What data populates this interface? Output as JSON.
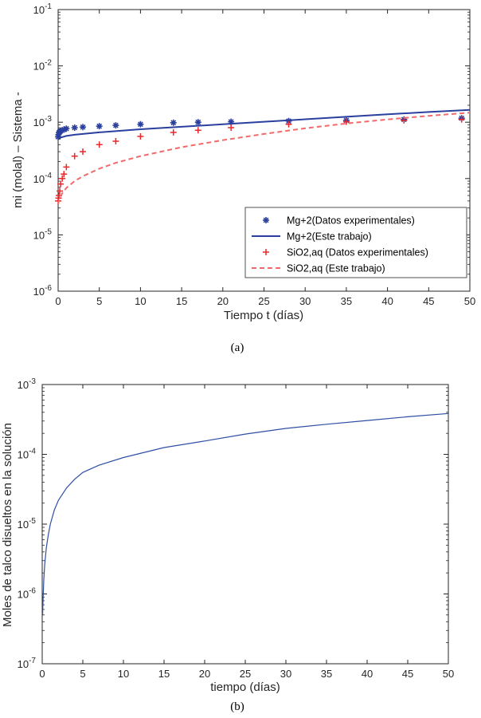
{
  "chart_data": [
    {
      "type": "line",
      "panel": "(a)",
      "xlabel": "Tiempo t (días)",
      "ylabel": "mi (molal) – Sistema -",
      "xlim": [
        0,
        50
      ],
      "ylim": [
        1e-06,
        0.1
      ],
      "yscale": "log",
      "xticks": [
        "0",
        "5",
        "10",
        "15",
        "20",
        "25",
        "30",
        "35",
        "40",
        "45",
        "50"
      ],
      "yticks": [
        {
          "base": "10",
          "exp": "-6"
        },
        {
          "base": "10",
          "exp": "-5"
        },
        {
          "base": "10",
          "exp": "-4"
        },
        {
          "base": "10",
          "exp": "-3"
        },
        {
          "base": "10",
          "exp": "-2"
        },
        {
          "base": "10",
          "exp": "-1"
        }
      ],
      "grid": false,
      "legend_position": "bottom-right",
      "series": [
        {
          "name": "Mg+2(Datos experimentales)",
          "style": "markers",
          "marker": "*",
          "color": "#2b3f9e",
          "x": [
            0,
            0.05,
            0.1,
            0.2,
            0.3,
            0.5,
            0.7,
            1,
            2,
            3,
            5,
            7,
            10,
            14,
            17,
            21,
            28,
            35,
            42,
            49
          ],
          "y": [
            0.00055,
            0.0006,
            0.00065,
            0.00068,
            0.0007,
            0.00072,
            0.00074,
            0.00077,
            0.0008,
            0.00082,
            0.00085,
            0.00088,
            0.00092,
            0.00098,
            0.001,
            0.00102,
            0.00105,
            0.00108,
            0.00112,
            0.00118
          ]
        },
        {
          "name": "Mg+2(Este trabajo)",
          "style": "solid",
          "color": "#2b3f9e",
          "x": [
            0,
            1,
            2,
            5,
            10,
            15,
            20,
            25,
            30,
            35,
            40,
            45,
            50
          ],
          "y": [
            0.00052,
            0.00057,
            0.0006,
            0.00066,
            0.00075,
            0.00083,
            0.00092,
            0.00102,
            0.00113,
            0.00125,
            0.00138,
            0.00152,
            0.00165
          ]
        },
        {
          "name": "SiO2,aq (Datos experimentales)",
          "style": "markers",
          "marker": "+",
          "color": "#e8272b",
          "x": [
            0,
            0.05,
            0.1,
            0.2,
            0.3,
            0.5,
            0.7,
            1,
            2,
            3,
            5,
            7,
            10,
            14,
            17,
            21,
            28,
            35,
            42,
            49
          ],
          "y": [
            4e-05,
            4.5e-05,
            5e-05,
            6e-05,
            8e-05,
            0.0001,
            0.00012,
            0.00016,
            0.00025,
            0.0003,
            0.0004,
            0.00046,
            0.00056,
            0.00066,
            0.00072,
            0.0008,
            0.00092,
            0.00102,
            0.00108,
            0.00112
          ]
        },
        {
          "name": "SiO2,aq (Este trabajo)",
          "style": "dashed",
          "color": "#f26a6a",
          "x": [
            0,
            0.1,
            0.3,
            0.5,
            1,
            2,
            3,
            5,
            7,
            10,
            15,
            20,
            25,
            30,
            35,
            40,
            45,
            50
          ],
          "y": [
            3.5e-05,
            4e-05,
            4.8e-05,
            5.5e-05,
            6.8e-05,
            9e-05,
            0.00011,
            0.00015,
            0.00019,
            0.00025,
            0.00036,
            0.00048,
            0.00062,
            0.00078,
            0.00095,
            0.00112,
            0.0013,
            0.00148
          ]
        }
      ]
    },
    {
      "type": "line",
      "panel": "(b)",
      "xlabel": "tiempo (días)",
      "ylabel": "Moles de talco disueltos en la solución",
      "xlim": [
        0,
        50
      ],
      "ylim": [
        1e-07,
        0.001
      ],
      "yscale": "log",
      "xticks": [
        "0",
        "5",
        "10",
        "15",
        "20",
        "25",
        "30",
        "35",
        "40",
        "45",
        "50"
      ],
      "yticks": [
        {
          "base": "10",
          "exp": "-7"
        },
        {
          "base": "10",
          "exp": "-6"
        },
        {
          "base": "10",
          "exp": "-5"
        },
        {
          "base": "10",
          "exp": "-4"
        },
        {
          "base": "10",
          "exp": "-3"
        }
      ],
      "grid": false,
      "series": [
        {
          "name": "",
          "style": "solid",
          "color": "#2e4fa3",
          "x": [
            0.05,
            0.1,
            0.2,
            0.3,
            0.5,
            0.75,
            1,
            1.5,
            2,
            3,
            4,
            5,
            7,
            10,
            15,
            20,
            25,
            30,
            35,
            40,
            45,
            50
          ],
          "y": [
            5e-07,
            8e-07,
            1.6e-06,
            2.6e-06,
            4.5e-06,
            7e-06,
            1e-05,
            1.6e-05,
            2.2e-05,
            3.3e-05,
            4.4e-05,
            5.5e-05,
            7e-05,
            9e-05,
            0.000125,
            0.000155,
            0.000195,
            0.000235,
            0.00027,
            0.000305,
            0.000345,
            0.000385
          ]
        }
      ]
    }
  ],
  "captions": [
    "(a)",
    "(b)"
  ]
}
